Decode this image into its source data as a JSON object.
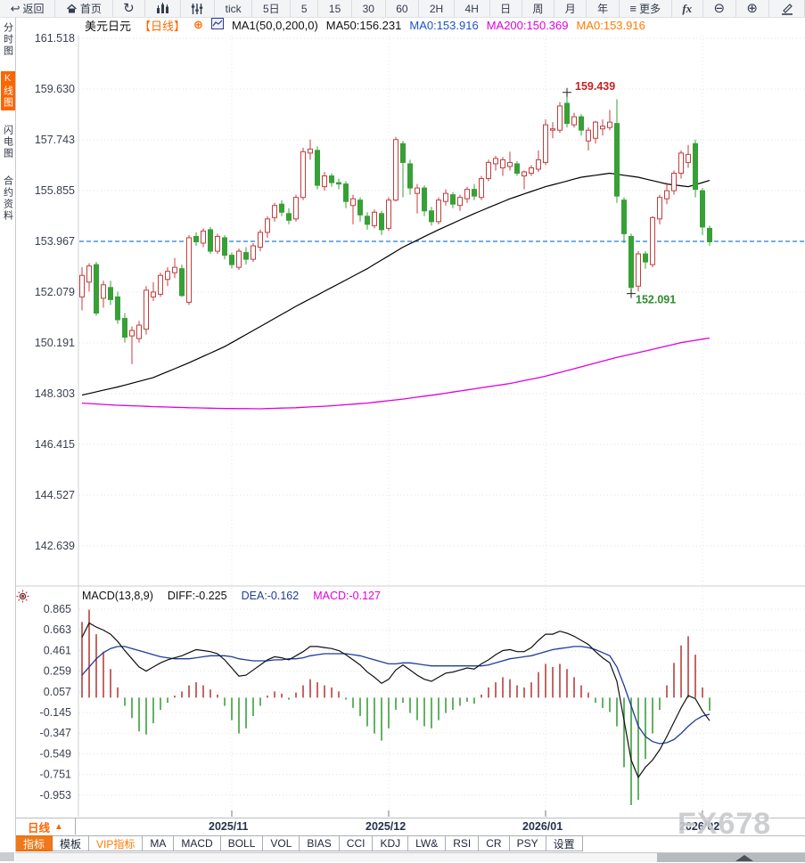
{
  "toolbar": {
    "items": [
      {
        "name": "back",
        "icon": "back-arrow",
        "label": "返回"
      },
      {
        "name": "home",
        "icon": "home",
        "label": "首页"
      },
      {
        "name": "refresh",
        "icon": "refresh",
        "label": ""
      },
      {
        "name": "kline-chart",
        "icon": "kline",
        "label": ""
      },
      {
        "name": "indicator-sliders",
        "icon": "sliders",
        "label": ""
      },
      {
        "name": "tick",
        "label": "tick"
      },
      {
        "name": "5d",
        "label": "5日"
      },
      {
        "name": "min5",
        "label": "5"
      },
      {
        "name": "min15",
        "label": "15"
      },
      {
        "name": "min30",
        "label": "30"
      },
      {
        "name": "min60",
        "label": "60"
      },
      {
        "name": "h2",
        "label": "2H"
      },
      {
        "name": "h4",
        "label": "4H"
      },
      {
        "name": "day",
        "label": "日"
      },
      {
        "name": "week",
        "label": "周"
      },
      {
        "name": "month",
        "label": "月"
      },
      {
        "name": "year",
        "label": "年"
      },
      {
        "name": "more",
        "icon": "menu",
        "label": "更多"
      },
      {
        "name": "fx",
        "label": "fx"
      },
      {
        "name": "zoom-out",
        "icon": "zoom-out",
        "label": ""
      },
      {
        "name": "zoom-in",
        "icon": "zoom-in",
        "label": ""
      },
      {
        "name": "draw",
        "icon": "pencil",
        "label": ""
      }
    ]
  },
  "sidebar": {
    "items": [
      {
        "label": "分时图",
        "selected": false
      },
      {
        "label": "K线图",
        "selected": true
      },
      {
        "label": "闪电图",
        "selected": false
      },
      {
        "label": "合约资料",
        "selected": false
      }
    ]
  },
  "symbol_bar": {
    "symbol": "美元日元",
    "period": "【日线】",
    "add_icon": "⊕",
    "ma_settings": "MA1(50,0,200,0)",
    "ma50": "MA50:156.231",
    "ma0_blue": "MA0:153.916",
    "ma200": "MA200:150.369",
    "ma0_orange": "MA0:153.916"
  },
  "macd_header": {
    "title": "MACD(13,8,9)",
    "diff": "DIFF:-0.225",
    "dea": "DEA:-0.162",
    "macd": "MACD:-0.127"
  },
  "bottom": {
    "period": "日线",
    "period_arrow": "▲",
    "dates": [
      "2025/11",
      "2025/12",
      "2026/01",
      "2026/02"
    ],
    "tabs": [
      {
        "label": "指标",
        "style": "active"
      },
      {
        "label": "模板",
        "style": ""
      },
      {
        "label": "VIP指标",
        "style": "vip"
      },
      {
        "label": "MA",
        "style": ""
      },
      {
        "label": "MACD",
        "style": ""
      },
      {
        "label": "BOLL",
        "style": ""
      },
      {
        "label": "VOL",
        "style": ""
      },
      {
        "label": "BIAS",
        "style": ""
      },
      {
        "label": "CCI",
        "style": ""
      },
      {
        "label": "KDJ",
        "style": ""
      },
      {
        "label": "LW&",
        "style": ""
      },
      {
        "label": "RSI",
        "style": ""
      },
      {
        "label": "CR",
        "style": ""
      },
      {
        "label": "PSY",
        "style": ""
      },
      {
        "label": "设置",
        "style": ""
      }
    ],
    "watermark": "FX678"
  },
  "colors": {
    "up_red": "#c43c3c",
    "down_green": "#37a037",
    "ma50_black": "#000000",
    "ma200_magenta": "#e000e0",
    "dea_blue": "#1e3c9b",
    "diff_black": "#111111",
    "price_line_blue": "#1f7fe0",
    "grid_pink": "#ecdcde",
    "accent_orange": "#ff6a00",
    "hist_red": "#b84040",
    "hist_green": "#3c9e3c"
  },
  "chart_data": [
    {
      "type": "candlestick",
      "title": "美元日元 日线",
      "y_ticks": [
        161.518,
        159.63,
        157.743,
        155.855,
        153.967,
        152.079,
        150.191,
        148.303,
        146.415,
        144.527,
        142.639
      ],
      "x_labels": [
        "2025/11",
        "2025/12",
        "2026/01",
        "2026/02"
      ],
      "x_label_indices": [
        21,
        43,
        65,
        87
      ],
      "last_close_line": 153.967,
      "high_annotation": {
        "index": 68,
        "price": 159.439,
        "label": "159.439"
      },
      "low_annotation": {
        "index": 77,
        "price": 152.091,
        "label": "152.091"
      },
      "candles_ohlc": [
        [
          151.9,
          153.0,
          151.4,
          152.7
        ],
        [
          152.45,
          153.15,
          152.1,
          153.05
        ],
        [
          153.1,
          153.2,
          151.2,
          151.3
        ],
        [
          151.85,
          152.5,
          151.5,
          152.35
        ],
        [
          152.25,
          152.5,
          151.6,
          151.8
        ],
        [
          151.9,
          152.1,
          150.9,
          151.05
        ],
        [
          151.1,
          151.3,
          150.2,
          150.4
        ],
        [
          150.45,
          150.8,
          149.4,
          150.65
        ],
        [
          150.35,
          151.0,
          150.2,
          150.85
        ],
        [
          150.7,
          152.3,
          150.5,
          152.15
        ],
        [
          151.9,
          152.45,
          151.75,
          152.08
        ],
        [
          152.0,
          152.8,
          151.9,
          152.7
        ],
        [
          152.55,
          153.0,
          152.3,
          152.85
        ],
        [
          152.8,
          153.35,
          152.6,
          153.0
        ],
        [
          152.95,
          153.1,
          151.9,
          151.95
        ],
        [
          151.7,
          154.2,
          151.6,
          154.1
        ],
        [
          154.15,
          154.3,
          153.8,
          153.95
        ],
        [
          153.9,
          154.45,
          153.75,
          154.35
        ],
        [
          154.4,
          154.5,
          153.5,
          153.6
        ],
        [
          153.6,
          154.25,
          153.5,
          154.15
        ],
        [
          154.1,
          154.2,
          153.3,
          153.45
        ],
        [
          153.45,
          153.55,
          152.95,
          153.1
        ],
        [
          153.0,
          153.7,
          152.9,
          153.6
        ],
        [
          153.55,
          153.75,
          153.1,
          153.3
        ],
        [
          153.3,
          153.9,
          153.2,
          153.8
        ],
        [
          153.75,
          154.4,
          153.6,
          154.3
        ],
        [
          154.3,
          154.9,
          154.1,
          154.8
        ],
        [
          154.85,
          155.4,
          154.7,
          155.3
        ],
        [
          155.35,
          155.5,
          154.9,
          155.05
        ],
        [
          155.0,
          155.2,
          154.6,
          154.75
        ],
        [
          154.8,
          155.7,
          154.7,
          155.6
        ],
        [
          155.6,
          157.45,
          155.5,
          157.3
        ],
        [
          157.25,
          157.75,
          157.0,
          157.4
        ],
        [
          157.35,
          157.5,
          155.9,
          156.05
        ],
        [
          156.0,
          156.55,
          155.85,
          156.4
        ],
        [
          156.4,
          156.5,
          156.0,
          156.15
        ],
        [
          156.15,
          156.3,
          155.9,
          156.1
        ],
        [
          156.1,
          156.2,
          155.2,
          155.45
        ],
        [
          155.3,
          155.7,
          154.6,
          155.55
        ],
        [
          155.5,
          155.6,
          154.7,
          154.95
        ],
        [
          154.9,
          155.05,
          154.4,
          154.6
        ],
        [
          154.55,
          155.15,
          154.45,
          155.05
        ],
        [
          155.0,
          155.1,
          154.2,
          154.4
        ],
        [
          154.45,
          155.6,
          154.35,
          155.5
        ],
        [
          155.5,
          157.85,
          155.45,
          157.75
        ],
        [
          157.6,
          157.7,
          155.6,
          156.9
        ],
        [
          156.85,
          157.0,
          155.7,
          155.95
        ],
        [
          155.75,
          156.1,
          155.0,
          155.95
        ],
        [
          155.95,
          156.05,
          154.9,
          155.1
        ],
        [
          155.1,
          155.25,
          154.55,
          154.7
        ],
        [
          154.7,
          155.6,
          154.6,
          155.5
        ],
        [
          155.45,
          155.9,
          155.3,
          155.75
        ],
        [
          155.7,
          155.8,
          155.2,
          155.35
        ],
        [
          155.3,
          155.7,
          155.1,
          155.6
        ],
        [
          155.55,
          156.0,
          155.4,
          155.9
        ],
        [
          155.9,
          156.1,
          155.5,
          155.65
        ],
        [
          155.6,
          156.4,
          155.5,
          156.3
        ],
        [
          156.3,
          157.0,
          156.2,
          156.9
        ],
        [
          156.85,
          157.15,
          156.6,
          157.05
        ],
        [
          156.7,
          157.1,
          156.4,
          157.0
        ],
        [
          156.75,
          157.3,
          156.6,
          156.9
        ],
        [
          156.85,
          156.95,
          156.4,
          156.5
        ],
        [
          156.4,
          156.6,
          155.9,
          156.55
        ],
        [
          156.5,
          156.8,
          156.4,
          156.7
        ],
        [
          156.65,
          157.35,
          156.55,
          157.0
        ],
        [
          156.9,
          158.5,
          156.8,
          158.3
        ],
        [
          158.1,
          158.4,
          157.8,
          158.15
        ],
        [
          158.1,
          159.15,
          158.0,
          159.0
        ],
        [
          159.1,
          159.439,
          158.2,
          158.35
        ],
        [
          158.3,
          158.75,
          158.2,
          158.6
        ],
        [
          158.6,
          158.7,
          157.9,
          158.1
        ],
        [
          157.7,
          158.2,
          157.35,
          158.1
        ],
        [
          157.8,
          158.45,
          157.6,
          158.4
        ],
        [
          158.15,
          158.5,
          157.9,
          158.25
        ],
        [
          158.2,
          158.85,
          158.1,
          158.4
        ],
        [
          158.35,
          159.25,
          155.4,
          155.65
        ],
        [
          155.5,
          155.6,
          153.9,
          154.25
        ],
        [
          154.15,
          154.25,
          152.091,
          152.25
        ],
        [
          152.3,
          153.6,
          152.1,
          153.5
        ],
        [
          153.5,
          153.6,
          152.95,
          153.2
        ],
        [
          153.1,
          154.9,
          153.0,
          154.85
        ],
        [
          154.8,
          155.7,
          154.6,
          155.6
        ],
        [
          155.55,
          156.15,
          155.35,
          155.85
        ],
        [
          155.85,
          156.6,
          155.7,
          156.5
        ],
        [
          156.5,
          157.35,
          156.3,
          157.25
        ],
        [
          156.9,
          157.55,
          156.7,
          157.2
        ],
        [
          157.6,
          157.75,
          155.6,
          155.9
        ],
        [
          155.85,
          155.95,
          154.2,
          154.5
        ],
        [
          154.45,
          154.55,
          153.8,
          153.95
        ]
      ],
      "ma50_points": [
        [
          0,
          148.25
        ],
        [
          5,
          148.55
        ],
        [
          10,
          148.9
        ],
        [
          15,
          149.45
        ],
        [
          20,
          150.05
        ],
        [
          25,
          150.8
        ],
        [
          30,
          151.55
        ],
        [
          35,
          152.25
        ],
        [
          40,
          152.95
        ],
        [
          45,
          153.75
        ],
        [
          50,
          154.4
        ],
        [
          55,
          155.0
        ],
        [
          60,
          155.55
        ],
        [
          65,
          156.0
        ],
        [
          70,
          156.35
        ],
        [
          74,
          156.5
        ],
        [
          78,
          156.35
        ],
        [
          82,
          156.1
        ],
        [
          85,
          156.0
        ],
        [
          88,
          156.23
        ]
      ],
      "ma200_points": [
        [
          0,
          147.95
        ],
        [
          5,
          147.87
        ],
        [
          10,
          147.82
        ],
        [
          15,
          147.78
        ],
        [
          20,
          147.75
        ],
        [
          25,
          147.74
        ],
        [
          30,
          147.78
        ],
        [
          35,
          147.85
        ],
        [
          40,
          147.95
        ],
        [
          45,
          148.1
        ],
        [
          50,
          148.28
        ],
        [
          55,
          148.48
        ],
        [
          60,
          148.68
        ],
        [
          65,
          148.95
        ],
        [
          70,
          149.3
        ],
        [
          75,
          149.65
        ],
        [
          80,
          149.95
        ],
        [
          84,
          150.2
        ],
        [
          88,
          150.37
        ]
      ]
    },
    {
      "type": "macd",
      "params": "(13,8,9)",
      "diff_last": -0.225,
      "dea_last": -0.162,
      "macd_last": -0.127,
      "y_ticks": [
        0.865,
        0.663,
        0.461,
        0.259,
        0.057,
        -0.145,
        -0.347,
        -0.549,
        -0.751,
        -0.953
      ],
      "histogram": [
        0.74,
        0.86,
        0.62,
        0.45,
        0.28,
        0.1,
        -0.08,
        -0.2,
        -0.33,
        -0.36,
        -0.25,
        -0.12,
        -0.05,
        0.02,
        0.06,
        0.12,
        0.15,
        0.12,
        0.08,
        0.03,
        -0.08,
        -0.22,
        -0.35,
        -0.3,
        -0.18,
        -0.08,
        0.02,
        0.06,
        0.04,
        -0.02,
        0.05,
        0.12,
        0.18,
        0.15,
        0.12,
        0.1,
        0.06,
        -0.02,
        -0.1,
        -0.18,
        -0.28,
        -0.35,
        -0.42,
        -0.3,
        -0.12,
        -0.05,
        -0.15,
        -0.22,
        -0.28,
        -0.3,
        -0.22,
        -0.15,
        -0.12,
        -0.08,
        -0.04,
        -0.06,
        0.03,
        0.1,
        0.15,
        0.2,
        0.18,
        0.12,
        0.1,
        0.15,
        0.25,
        0.33,
        0.3,
        0.33,
        0.28,
        0.2,
        0.12,
        0.05,
        -0.05,
        -0.1,
        -0.14,
        -0.28,
        -0.68,
        -1.05,
        -1.0,
        -0.6,
        -0.35,
        -0.12,
        0.12,
        0.34,
        0.51,
        0.6,
        0.42,
        0.1,
        -0.127
      ],
      "diff": [
        0.59,
        0.73,
        0.69,
        0.66,
        0.62,
        0.55,
        0.46,
        0.38,
        0.3,
        0.26,
        0.3,
        0.34,
        0.37,
        0.39,
        0.41,
        0.44,
        0.47,
        0.46,
        0.45,
        0.43,
        0.37,
        0.29,
        0.21,
        0.22,
        0.27,
        0.32,
        0.37,
        0.4,
        0.39,
        0.37,
        0.41,
        0.45,
        0.5,
        0.5,
        0.49,
        0.48,
        0.46,
        0.42,
        0.37,
        0.32,
        0.25,
        0.2,
        0.14,
        0.18,
        0.27,
        0.32,
        0.27,
        0.22,
        0.18,
        0.16,
        0.2,
        0.24,
        0.25,
        0.27,
        0.29,
        0.28,
        0.33,
        0.37,
        0.42,
        0.46,
        0.47,
        0.45,
        0.45,
        0.49,
        0.56,
        0.62,
        0.62,
        0.65,
        0.63,
        0.6,
        0.56,
        0.52,
        0.45,
        0.39,
        0.34,
        0.16,
        -0.22,
        -0.61,
        -0.78,
        -0.68,
        -0.61,
        -0.51,
        -0.38,
        -0.24,
        -0.1,
        0.02,
        -0.01,
        -0.13,
        -0.225
      ],
      "dea": [
        0.22,
        0.3,
        0.38,
        0.44,
        0.48,
        0.5,
        0.5,
        0.48,
        0.46,
        0.44,
        0.42,
        0.4,
        0.39,
        0.38,
        0.38,
        0.38,
        0.39,
        0.4,
        0.41,
        0.41,
        0.41,
        0.4,
        0.38,
        0.37,
        0.36,
        0.36,
        0.36,
        0.37,
        0.37,
        0.38,
        0.38,
        0.39,
        0.41,
        0.42,
        0.43,
        0.43,
        0.43,
        0.43,
        0.42,
        0.41,
        0.39,
        0.37,
        0.35,
        0.33,
        0.33,
        0.34,
        0.34,
        0.33,
        0.32,
        0.31,
        0.31,
        0.31,
        0.31,
        0.31,
        0.31,
        0.31,
        0.31,
        0.32,
        0.34,
        0.36,
        0.38,
        0.39,
        0.4,
        0.41,
        0.43,
        0.45,
        0.47,
        0.48,
        0.49,
        0.5,
        0.5,
        0.49,
        0.47,
        0.44,
        0.41,
        0.3,
        0.12,
        -0.08,
        -0.28,
        -0.38,
        -0.43,
        -0.45,
        -0.44,
        -0.41,
        -0.35,
        -0.28,
        -0.22,
        -0.18,
        -0.162
      ]
    }
  ]
}
